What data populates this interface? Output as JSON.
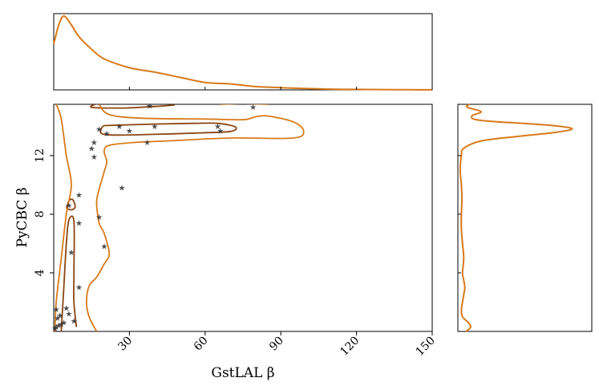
{
  "chart_data": {
    "type": "scatter",
    "subtype": "joint-density-contour-with-marginals",
    "xlabel": "GstLAL β",
    "ylabel": "PyCBC β",
    "xlim": [
      0,
      150
    ],
    "ylim": [
      0,
      15.5
    ],
    "xticks": [
      30,
      60,
      90,
      120,
      150
    ],
    "xtick_labels": [
      "30",
      "60",
      "90",
      "120",
      "150"
    ],
    "yticks": [
      4,
      8,
      12
    ],
    "ytick_labels": [
      "4",
      "8",
      "12"
    ],
    "grid": false,
    "legend": "none",
    "colors": {
      "points": "#333333",
      "inner_contour": "#8B4513",
      "outer_contour": "#D87A1A",
      "marginal": "#D87A1A"
    },
    "points": [
      [
        1,
        0.3
      ],
      [
        2,
        0.4
      ],
      [
        3,
        0.5
      ],
      [
        1.5,
        0.9
      ],
      [
        2.5,
        1.1
      ],
      [
        4,
        0.6
      ],
      [
        1,
        1.5
      ],
      [
        0.5,
        0.2
      ],
      [
        6,
        1.2
      ],
      [
        8,
        0.7
      ],
      [
        5,
        1.6
      ],
      [
        10,
        3.0
      ],
      [
        7,
        5.4
      ],
      [
        10,
        7.4
      ],
      [
        6,
        8.6
      ],
      [
        10,
        9.3
      ],
      [
        18,
        7.8
      ],
      [
        20,
        5.8
      ],
      [
        27,
        9.8
      ],
      [
        16,
        11.9
      ],
      [
        15,
        12.5
      ],
      [
        16,
        12.9
      ],
      [
        18,
        13.8
      ],
      [
        21,
        13.5
      ],
      [
        26,
        14.0
      ],
      [
        30,
        13.7
      ],
      [
        37,
        12.9
      ],
      [
        40,
        14.0
      ],
      [
        65,
        14.0
      ],
      [
        66,
        13.7
      ],
      [
        38,
        15.4
      ],
      [
        79,
        15.3
      ]
    ],
    "contours": [
      {
        "level": "inner",
        "color": "#8B4513",
        "paths": [
          [
            [
              18,
              15.6
            ],
            [
              15,
              15.3
            ],
            [
              28,
              15.25
            ],
            [
              40,
              15.35
            ],
            [
              48,
              15.45
            ]
          ],
          [
            [
              20,
              14.05
            ],
            [
              40,
              14.15
            ],
            [
              55,
              14.2
            ],
            [
              65,
              14.2
            ],
            [
              72,
              13.95
            ],
            [
              70,
              13.65
            ],
            [
              58,
              13.55
            ],
            [
              40,
              13.45
            ],
            [
              25,
              13.4
            ],
            [
              19,
              13.5
            ],
            [
              19,
              13.9
            ],
            [
              20,
              14.05
            ]
          ],
          [
            [
              5,
              8.4
            ],
            [
              6,
              8.9
            ],
            [
              7.5,
              9.0
            ],
            [
              8.5,
              8.5
            ],
            [
              7,
              8.3
            ],
            [
              5,
              8.4
            ]
          ],
          [
            [
              3,
              0
            ],
            [
              4,
              3
            ],
            [
              5,
              6
            ],
            [
              6,
              7.6
            ],
            [
              8,
              7.5
            ],
            [
              8,
              4
            ],
            [
              8,
              2
            ],
            [
              9,
              0.3
            ]
          ]
        ]
      },
      {
        "level": "outer",
        "color": "#D87A1A",
        "paths": [
          [
            [
              1,
              15.5
            ],
            [
              3,
              14.5
            ],
            [
              5,
              12
            ],
            [
              7,
              10
            ],
            [
              5,
              8
            ],
            [
              3,
              5
            ],
            [
              1,
              2
            ],
            [
              0.5,
              0
            ]
          ],
          [
            [
              18,
              15.5
            ],
            [
              22,
              14.8
            ],
            [
              35,
              14.55
            ],
            [
              60,
              14.5
            ],
            [
              75,
              14.45
            ],
            [
              80,
              14.65
            ],
            [
              85,
              14.7
            ],
            [
              95,
              14.3
            ],
            [
              99,
              13.7
            ],
            [
              95,
              13.2
            ],
            [
              70,
              13.2
            ],
            [
              45,
              13.0
            ],
            [
              32,
              12.9
            ],
            [
              22,
              12.7
            ],
            [
              20,
              12.3
            ],
            [
              21,
              11.6
            ],
            [
              20,
              10.9
            ],
            [
              18,
              9.7
            ],
            [
              17,
              8.8
            ],
            [
              18,
              7.4
            ],
            [
              20,
              6.7
            ],
            [
              22,
              5.3
            ],
            [
              20,
              4.6
            ],
            [
              17,
              3.7
            ],
            [
              14,
              3.1
            ],
            [
              13,
              2.0
            ],
            [
              14,
              1.0
            ],
            [
              17,
              0
            ]
          ],
          [
            [
              66,
              15.5
            ],
            [
              75,
              15.55
            ],
            [
              85,
              15.5
            ]
          ]
        ]
      }
    ],
    "marginal_x": {
      "x": [
        0,
        2,
        4,
        7,
        10,
        15,
        20,
        30,
        40,
        50,
        60,
        70,
        80,
        90,
        100,
        110,
        120,
        130,
        140,
        150
      ],
      "density": [
        0.62,
        0.88,
        1.0,
        0.88,
        0.72,
        0.55,
        0.42,
        0.3,
        0.24,
        0.17,
        0.1,
        0.08,
        0.045,
        0.03,
        0.018,
        0.01,
        0.006,
        0.004,
        0.002,
        0.001
      ]
    },
    "marginal_y": {
      "y": [
        0,
        0.3,
        0.6,
        1,
        1.5,
        2,
        2.5,
        3,
        3.5,
        4,
        5,
        6,
        7,
        8,
        9,
        10,
        11,
        12,
        12.5,
        13,
        13.3,
        13.6,
        13.85,
        14.1,
        14.4,
        14.7,
        15,
        15.3,
        15.5
      ],
      "density": [
        0.07,
        0.11,
        0.09,
        0.04,
        0.03,
        0.04,
        0.05,
        0.06,
        0.05,
        0.04,
        0.05,
        0.04,
        0.03,
        0.03,
        0.035,
        0.03,
        0.02,
        0.03,
        0.05,
        0.2,
        0.5,
        0.85,
        0.98,
        0.75,
        0.2,
        0.12,
        0.2,
        0.08,
        0.1
      ]
    }
  }
}
